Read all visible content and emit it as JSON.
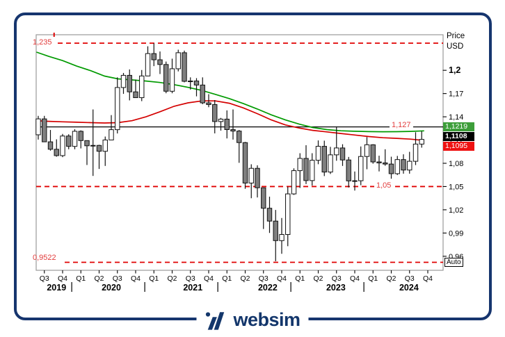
{
  "header": {
    "price_line1": "Price",
    "price_line2": "USD"
  },
  "auto_button": {
    "label": "Auto"
  },
  "logo": {
    "text": "websim"
  },
  "price_boxes": {
    "ma_green_label": "1,1219",
    "last_price_label": "1,1108",
    "ma_red_label": "1,1095"
  },
  "colors": {
    "up_fill": "#ffffff",
    "down_fill": "#7f7f7f",
    "candle_border": "#111111",
    "wick": "#111111",
    "ma_green": "#009a00",
    "ma_red": "#d40000",
    "dashed_line": "#e00000",
    "level_label": "#e23b3b",
    "black_line": "#000000",
    "plot_border": "#9a9a9a",
    "axis_text": "#000000",
    "box_green_bg": "#3d9e3a",
    "box_black_bg": "#000000",
    "box_red_bg": "#ee1111",
    "card_border": "#16356e",
    "logo": "#13366b"
  },
  "chart_data": {
    "type": "candlestick",
    "timeframe": "monthly",
    "start_month": "2019-06",
    "end_month": "2024-09",
    "ylim": [
      0.9419,
      1.2459
    ],
    "grid": false,
    "y_axis": {
      "title_lines": [
        "Price",
        "USD"
      ],
      "ticks": [
        {
          "value": 1.2,
          "label": "1,2",
          "bold": true
        },
        {
          "value": 1.17,
          "label": "1,17",
          "bold": false
        },
        {
          "value": 1.14,
          "label": "1,14",
          "bold": false
        },
        {
          "value": 1.11,
          "label": "1,11",
          "bold": false
        },
        {
          "value": 1.08,
          "label": "1,08",
          "bold": false
        },
        {
          "value": 1.05,
          "label": "1,05",
          "bold": false
        },
        {
          "value": 1.02,
          "label": "1,02",
          "bold": false
        },
        {
          "value": 0.99,
          "label": "0,99",
          "bold": false
        },
        {
          "value": 0.96,
          "label": "0,96",
          "bold": false
        }
      ]
    },
    "x_axis": {
      "first_index": 1,
      "index_step": 3,
      "quarter_labels": [
        "Q3",
        "Q4",
        "Q1",
        "Q2",
        "Q3",
        "Q4",
        "Q1",
        "Q2",
        "Q3",
        "Q4",
        "Q1",
        "Q2",
        "Q3",
        "Q4",
        "Q1",
        "Q2",
        "Q3",
        "Q4",
        "Q1",
        "Q2",
        "Q3",
        "Q4"
      ],
      "years": [
        {
          "label": "2019",
          "center_index": 3
        },
        {
          "label": "2020",
          "center_index": 12
        },
        {
          "label": "2021",
          "center_index": 25.4
        },
        {
          "label": "2022",
          "center_index": 37.7
        },
        {
          "label": "2023",
          "center_index": 48.9
        },
        {
          "label": "2024",
          "center_index": 60.9
        }
      ],
      "year_separator_indices": [
        5.5,
        17.5,
        29.5,
        41.5,
        53.5
      ]
    },
    "levels": [
      {
        "label": "1,235",
        "value": 1.235,
        "style": "dashed",
        "color": "#e00000"
      },
      {
        "label": "1,127",
        "value": 1.127,
        "style": "solid",
        "color": "#000000"
      },
      {
        "label": "1,05",
        "value": 1.05,
        "style": "dashed",
        "color": "#e00000"
      },
      {
        "label": "0,9522",
        "value": 0.9522,
        "style": "dashed",
        "color": "#e00000"
      }
    ],
    "top_anchor_index": 2.6,
    "series": {
      "candles_ohlc": [
        [
          1.1168,
          1.1412,
          1.1106,
          1.1373
        ],
        [
          1.1373,
          1.1412,
          1.1101,
          1.1077
        ],
        [
          1.1077,
          1.123,
          1.0963,
          1.0981
        ],
        [
          1.0981,
          1.1109,
          1.0885,
          1.0899
        ],
        [
          1.0899,
          1.1179,
          1.0879,
          1.1152
        ],
        [
          1.1152,
          1.1175,
          1.0981,
          1.1018
        ],
        [
          1.1018,
          1.124,
          1.0981,
          1.1213
        ],
        [
          1.1213,
          1.1225,
          1.0992,
          1.1093
        ],
        [
          1.1093,
          1.1096,
          1.0778,
          1.1026
        ],
        [
          1.1026,
          1.1495,
          1.0637,
          1.1031
        ],
        [
          1.1031,
          1.1039,
          1.0727,
          1.0955
        ],
        [
          1.0955,
          1.1145,
          1.0766,
          1.1101
        ],
        [
          1.1101,
          1.1422,
          1.1101,
          1.1234
        ],
        [
          1.1234,
          1.1909,
          1.1185,
          1.1778
        ],
        [
          1.1778,
          1.1966,
          1.1696,
          1.1935
        ],
        [
          1.1935,
          1.2011,
          1.1612,
          1.1722
        ],
        [
          1.1722,
          1.1881,
          1.165,
          1.1647
        ],
        [
          1.1647,
          1.2004,
          1.1602,
          1.1927
        ],
        [
          1.1927,
          1.231,
          1.1923,
          1.2216
        ],
        [
          1.2216,
          1.2349,
          1.2054,
          1.2136
        ],
        [
          1.2136,
          1.2243,
          1.1952,
          1.2075
        ],
        [
          1.2075,
          1.2113,
          1.1704,
          1.173
        ],
        [
          1.173,
          1.215,
          1.1704,
          1.202
        ],
        [
          1.202,
          1.2266,
          1.1986,
          1.2227
        ],
        [
          1.2227,
          1.2254,
          1.1845,
          1.1858
        ],
        [
          1.1858,
          1.1909,
          1.1752,
          1.1862
        ],
        [
          1.1862,
          1.1899,
          1.1664,
          1.181
        ],
        [
          1.181,
          1.1909,
          1.1563,
          1.158
        ],
        [
          1.158,
          1.1692,
          1.1524,
          1.1558
        ],
        [
          1.1558,
          1.1616,
          1.1186,
          1.1339
        ],
        [
          1.1339,
          1.1386,
          1.1222,
          1.137
        ],
        [
          1.137,
          1.1483,
          1.1121,
          1.1235
        ],
        [
          1.1235,
          1.1495,
          1.1106,
          1.1216
        ],
        [
          1.1216,
          1.123,
          1.0806,
          1.1067
        ],
        [
          1.1067,
          1.1076,
          1.0471,
          1.0545
        ],
        [
          1.0545,
          1.0787,
          1.0349,
          1.0735
        ],
        [
          1.0735,
          1.0774,
          1.0359,
          1.0484
        ],
        [
          1.0484,
          1.0487,
          0.9952,
          1.022
        ],
        [
          1.022,
          1.0369,
          0.9901,
          1.0054
        ],
        [
          1.0054,
          1.0198,
          0.9536,
          0.9802
        ],
        [
          0.9802,
          1.0094,
          0.9632,
          0.9881
        ],
        [
          0.9881,
          1.0497,
          0.973,
          1.0405
        ],
        [
          1.0405,
          1.0735,
          1.0392,
          1.0705
        ],
        [
          1.0705,
          1.093,
          1.0482,
          1.0863
        ],
        [
          1.0863,
          1.1033,
          1.0532,
          1.0577
        ],
        [
          1.0577,
          1.093,
          1.0512,
          1.0839
        ],
        [
          1.0839,
          1.1095,
          1.0788,
          1.1019
        ],
        [
          1.1019,
          1.1092,
          1.0635,
          1.0687
        ],
        [
          1.0687,
          1.1012,
          1.0662,
          1.0909
        ],
        [
          1.0909,
          1.1276,
          1.0833,
          1.0998
        ],
        [
          1.0998,
          1.1046,
          1.0766,
          1.0843
        ],
        [
          1.0843,
          1.0882,
          1.0488,
          1.0573
        ],
        [
          1.0573,
          1.0694,
          1.0448,
          1.0575
        ],
        [
          1.0575,
          1.1017,
          1.0517,
          1.0888
        ],
        [
          1.0888,
          1.1139,
          1.0723,
          1.1039
        ],
        [
          1.1039,
          1.1046,
          1.0795,
          1.0818
        ],
        [
          1.0818,
          1.0898,
          1.0695,
          1.0805
        ],
        [
          1.0805,
          1.0981,
          1.0768,
          1.079
        ],
        [
          1.079,
          1.0885,
          1.0601,
          1.0666
        ],
        [
          1.0666,
          1.0895,
          1.0649,
          1.0848
        ],
        [
          1.0848,
          1.0916,
          1.0666,
          1.0713
        ],
        [
          1.0713,
          1.0948,
          1.0666,
          1.0826
        ],
        [
          1.0826,
          1.1201,
          1.0777,
          1.1048
        ],
        [
          1.1048,
          1.1214,
          1.1002,
          1.1108
        ]
      ],
      "ma_green": [
        [
          -0.3,
          1.2235
        ],
        [
          1.7,
          1.218
        ],
        [
          4,
          1.2125
        ],
        [
          6.3,
          1.2055
        ],
        [
          8.6,
          1.1995
        ],
        [
          10.9,
          1.1925
        ],
        [
          13.1,
          1.189
        ],
        [
          15.4,
          1.1876
        ],
        [
          17.7,
          1.1862
        ],
        [
          20,
          1.1843
        ],
        [
          22.3,
          1.1815
        ],
        [
          24.6,
          1.178
        ],
        [
          26.9,
          1.174
        ],
        [
          29.1,
          1.169
        ],
        [
          31.4,
          1.1635
        ],
        [
          33.7,
          1.157
        ],
        [
          36,
          1.15
        ],
        [
          38.3,
          1.1425
        ],
        [
          40.6,
          1.136
        ],
        [
          42.9,
          1.1305
        ],
        [
          45.1,
          1.1262
        ],
        [
          47.4,
          1.1235
        ],
        [
          49.7,
          1.122
        ],
        [
          52,
          1.1213
        ],
        [
          54.3,
          1.1209
        ],
        [
          56.6,
          1.1207
        ],
        [
          58.9,
          1.1208
        ],
        [
          61.1,
          1.1212
        ],
        [
          63.4,
          1.1219
        ]
      ],
      "ma_red": [
        [
          -0.3,
          1.135
        ],
        [
          1.7,
          1.1342
        ],
        [
          4,
          1.1335
        ],
        [
          6.3,
          1.133
        ],
        [
          8.6,
          1.1325
        ],
        [
          10.9,
          1.132
        ],
        [
          13.1,
          1.1325
        ],
        [
          15.4,
          1.135
        ],
        [
          17.7,
          1.14
        ],
        [
          20,
          1.1465
        ],
        [
          22.3,
          1.1535
        ],
        [
          24.6,
          1.158
        ],
        [
          26.9,
          1.1605
        ],
        [
          29.1,
          1.1605
        ],
        [
          31.4,
          1.1575
        ],
        [
          33.7,
          1.1515
        ],
        [
          36,
          1.144
        ],
        [
          38.3,
          1.136
        ],
        [
          40.6,
          1.1295
        ],
        [
          42.9,
          1.1255
        ],
        [
          45.1,
          1.1225
        ],
        [
          47.4,
          1.1205
        ],
        [
          49.7,
          1.1185
        ],
        [
          52,
          1.1165
        ],
        [
          54.3,
          1.1145
        ],
        [
          56.6,
          1.113
        ],
        [
          58.9,
          1.1122
        ],
        [
          61.1,
          1.1112
        ],
        [
          63.4,
          1.1095
        ]
      ]
    },
    "last_price": 1.1108,
    "ma_green_last": 1.1219,
    "ma_red_last": 1.1095
  }
}
